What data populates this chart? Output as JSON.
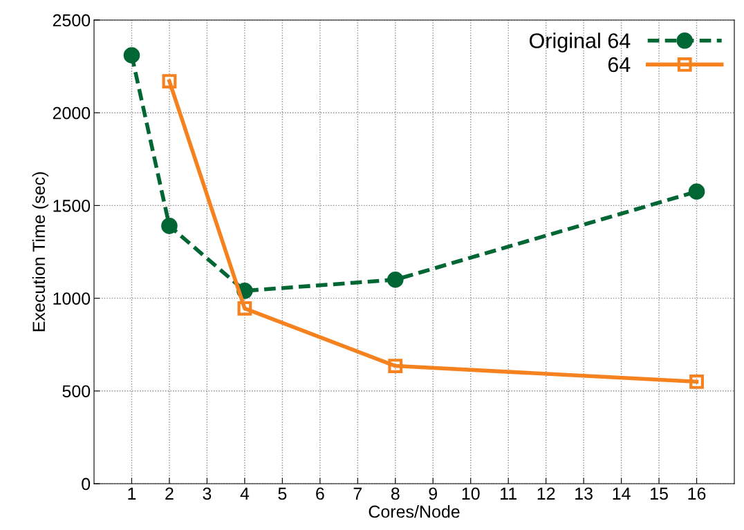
{
  "chart_data": {
    "type": "line",
    "xlabel": "Cores/Node",
    "ylabel": "Execution Time (sec)",
    "xlim": [
      0,
      17
    ],
    "xticks": [
      1,
      2,
      3,
      4,
      5,
      6,
      7,
      8,
      9,
      10,
      11,
      12,
      13,
      14,
      15,
      16
    ],
    "ylim": [
      0,
      2500
    ],
    "yticks": [
      0,
      500,
      1000,
      1500,
      2000,
      2500
    ],
    "grid": true,
    "legend": "top right",
    "series": [
      {
        "name": "Original 64",
        "color": "#006633",
        "x": [
          1,
          2,
          4,
          8,
          16
        ],
        "values": [
          2310,
          1390,
          1040,
          1100,
          1575
        ],
        "marker": "circle",
        "line_style": "dashed"
      },
      {
        "name": "64",
        "color": "#f5821f",
        "x": [
          2,
          4,
          8,
          16
        ],
        "values": [
          2170,
          945,
          635,
          550
        ],
        "marker": "square",
        "line_style": "solid"
      }
    ]
  }
}
